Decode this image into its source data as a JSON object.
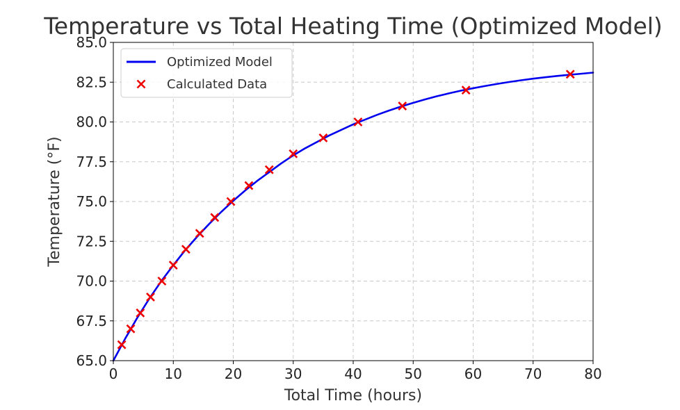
{
  "chart_data": {
    "type": "line",
    "title": "Temperature vs Total Heating Time (Optimized Model)",
    "xlabel": "Total Time (hours)",
    "ylabel": "Temperature (°F)",
    "xlim": [
      0,
      80
    ],
    "ylim": [
      65,
      85
    ],
    "x_ticks": [
      0,
      10,
      20,
      30,
      40,
      50,
      60,
      70,
      80
    ],
    "y_ticks": [
      "65.0",
      "67.5",
      "70.0",
      "72.5",
      "75.0",
      "77.5",
      "80.0",
      "82.5",
      "85.0"
    ],
    "grid": true,
    "legend_position": "top-left",
    "series": [
      {
        "name": "Optimized Model",
        "kind": "line",
        "color": "#0000ee",
        "x": [
          0,
          2,
          4,
          6,
          8,
          10,
          12,
          14,
          16,
          18,
          20,
          22,
          24,
          26,
          28,
          30,
          32,
          34,
          36,
          38,
          40,
          42,
          44,
          46,
          48,
          50,
          52,
          54,
          56,
          58,
          60,
          62,
          64,
          66,
          68,
          70,
          72,
          74,
          76,
          78,
          80
        ],
        "y": [
          65.0,
          66.4,
          67.7,
          68.9,
          70.0,
          71.0,
          71.95,
          72.8,
          73.6,
          74.35,
          75.05,
          75.7,
          76.3,
          76.85,
          77.4,
          77.9,
          78.35,
          78.75,
          79.15,
          79.5,
          79.85,
          80.15,
          80.45,
          80.72,
          80.97,
          81.2,
          81.42,
          81.62,
          81.8,
          81.97,
          82.12,
          82.26,
          82.39,
          82.51,
          82.62,
          82.72,
          82.81,
          82.89,
          82.96,
          83.03,
          83.1
        ]
      },
      {
        "name": "Calculated Data",
        "kind": "scatter",
        "marker": "x",
        "color": "#ee0000",
        "x": [
          1.4,
          2.9,
          4.5,
          6.2,
          8.1,
          10.0,
          12.1,
          14.4,
          16.9,
          19.6,
          22.6,
          26.0,
          30.0,
          35.0,
          40.8,
          48.2,
          58.8,
          76.2
        ],
        "y": [
          66,
          67,
          68,
          69,
          70,
          71,
          72,
          73,
          74,
          75,
          76,
          77,
          78,
          79,
          80,
          81,
          82,
          83
        ]
      }
    ]
  }
}
